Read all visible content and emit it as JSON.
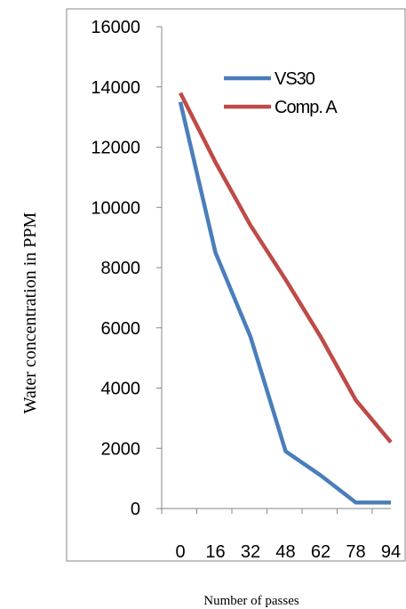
{
  "chart_data": {
    "type": "line",
    "title": "",
    "xlabel": "Number of passes",
    "ylabel": "Water concentration in PPM",
    "categories": [
      "0",
      "16",
      "32",
      "48",
      "62",
      "78",
      "94"
    ],
    "yticks": [
      "0",
      "2000",
      "4000",
      "6000",
      "8000",
      "10000",
      "12000",
      "14000",
      "16000"
    ],
    "ylim": [
      0,
      16000
    ],
    "grid": false,
    "legend_position": "top-right",
    "series": [
      {
        "name": "VS30",
        "color": "#4a7ebb",
        "values": [
          13500,
          8500,
          5700,
          1900,
          1100,
          200,
          200
        ]
      },
      {
        "name": "Comp. A",
        "color": "#be4b48",
        "values": [
          13800,
          11500,
          9400,
          7600,
          5700,
          3600,
          2200
        ]
      }
    ]
  }
}
